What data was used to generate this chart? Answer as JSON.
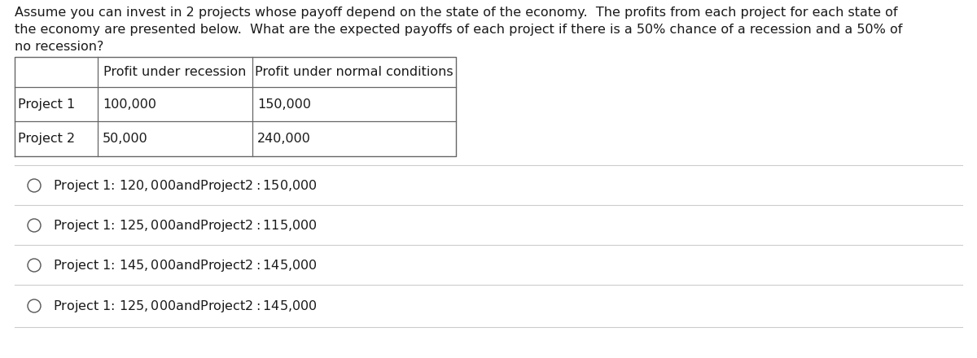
{
  "question_text_line1": "Assume you can invest in 2 projects whose payoff depend on the state of the economy.  The profits from each project for each state of",
  "question_text_line2": "the economy are presented below.  What are the expected payoffs of each project if there is a 50% chance of a recession and a 50% of",
  "question_text_line3": "no recession?",
  "table": {
    "col_headers": [
      "",
      "Profit under recession",
      "Profit under normal conditions"
    ],
    "rows": [
      [
        "Project 1",
        "100,000",
        "150,000"
      ],
      [
        "Project 2",
        "50,000",
        "240,000"
      ]
    ]
  },
  "options": [
    "Project 1: $120,000 and Project 2: $150,000",
    "Project 1: $125,000 and Project 2: $115,000",
    "Project 1: $145,000 and Project 2: $145,000",
    "Project 1: $125,000 and Project 2: $145,000"
  ],
  "bg_color": "#ffffff",
  "text_color": "#1a1a1a",
  "font_size": 11.5,
  "option_font_size": 11.5,
  "table_font_size": 11.5,
  "table_line_color": "#666666"
}
